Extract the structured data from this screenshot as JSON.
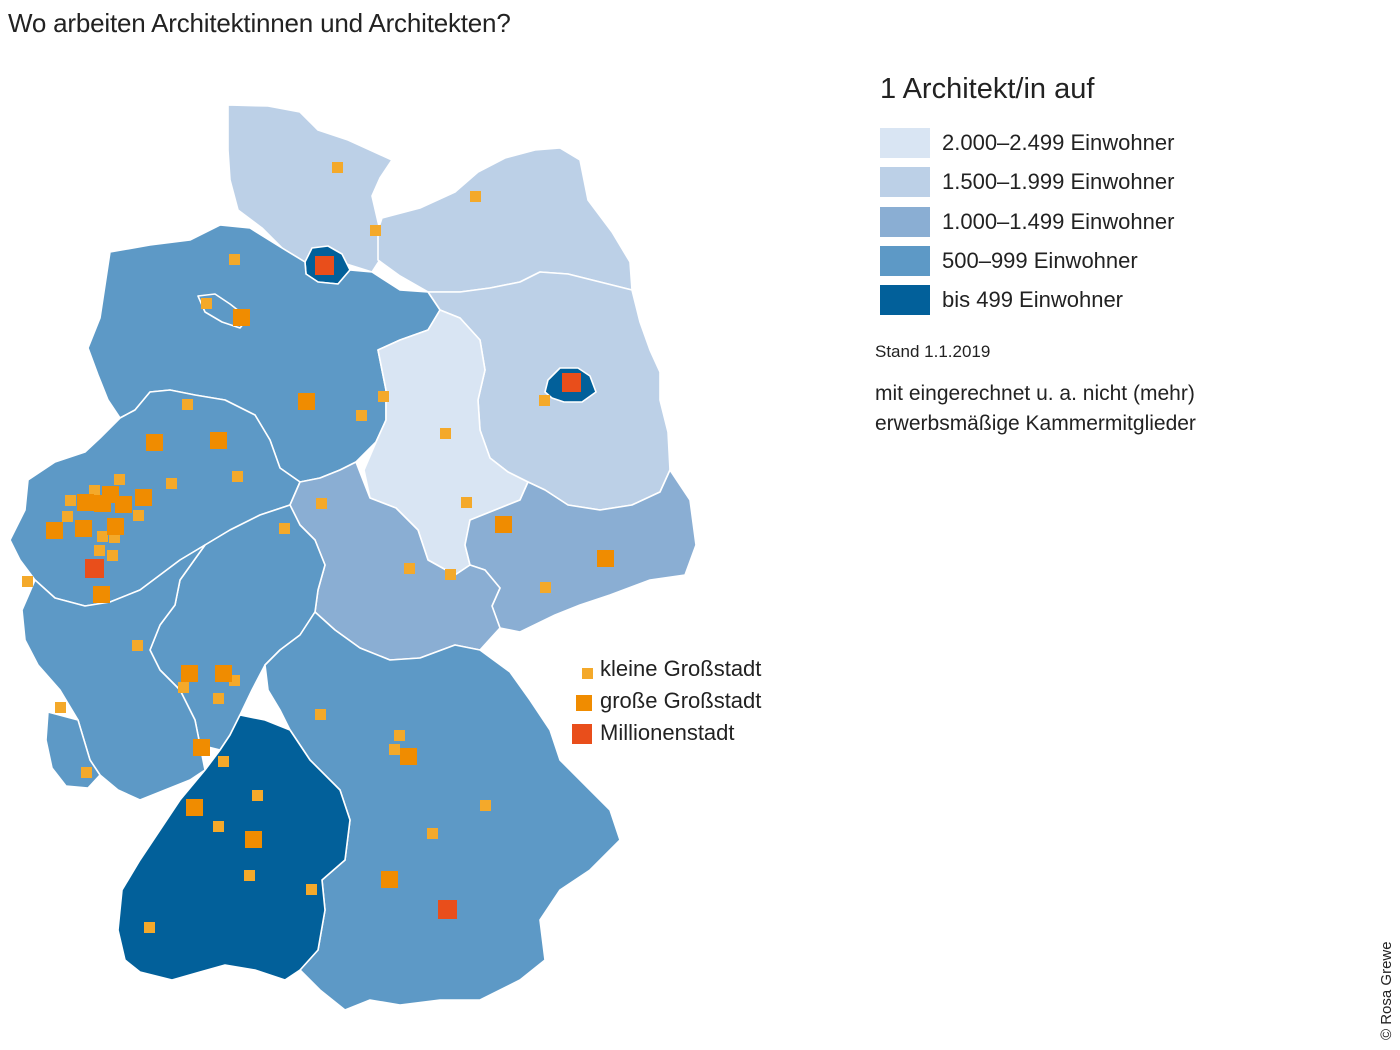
{
  "title": "Wo arbeiten Architektinnen und Architekten?",
  "legend": {
    "title": "1 Architekt/in auf",
    "items": [
      {
        "label": "2.000–2.499 Einwohner",
        "color": "#d9e5f3"
      },
      {
        "label": "1.500–1.999 Einwohner",
        "color": "#bcd0e7"
      },
      {
        "label": "1.000–1.499 Einwohner",
        "color": "#8aaed3"
      },
      {
        "label": "500–999 Einwohner",
        "color": "#5d99c6"
      },
      {
        "label": "bis 499 Einwohner",
        "color": "#02609a"
      }
    ]
  },
  "stand": "Stand 1.1.2019",
  "note_line1": "mit eingerechnet u. a. nicht (mehr)",
  "note_line2": "erwerbsmäßige Kammermitglieder",
  "city_legend": [
    {
      "label": "kleine Großstadt",
      "color": "#f4a92a",
      "size": "small"
    },
    {
      "label": "große Großstadt",
      "color": "#f08c00",
      "size": "medium"
    },
    {
      "label": "Millionenstadt",
      "color": "#e94e1b",
      "size": "large"
    }
  ],
  "credit": "© Rosa Grewe"
}
